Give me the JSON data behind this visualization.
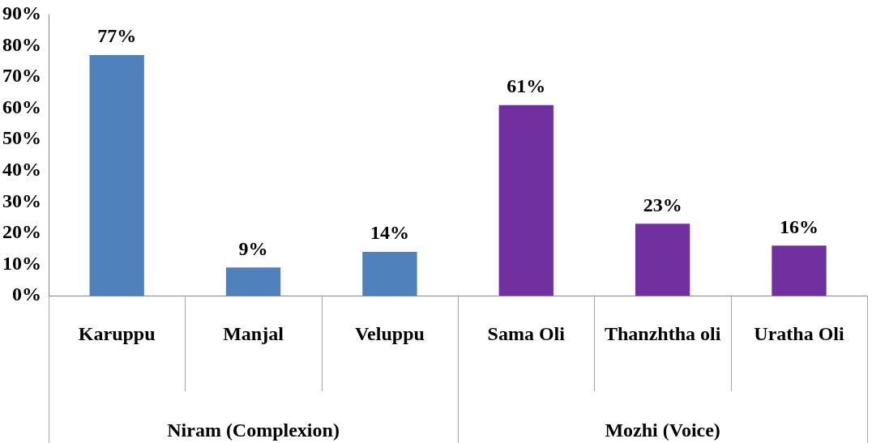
{
  "chart_data": {
    "type": "bar",
    "categories": [
      "Karuppu",
      "Manjal",
      "Veluppu",
      "Sama Oli",
      "Thanzhtha oli",
      "Uratha Oli"
    ],
    "values": [
      77,
      9,
      14,
      61,
      23,
      16
    ],
    "colors": [
      "#4f81bd",
      "#4f81bd",
      "#4f81bd",
      "#7030a0",
      "#7030a0",
      "#7030a0"
    ],
    "value_labels": [
      "77%",
      "9%",
      "14%",
      "61%",
      "23%",
      "16%"
    ],
    "ylim": [
      0,
      90
    ],
    "yticks": [
      {
        "value": 0,
        "label": "0%"
      },
      {
        "value": 10,
        "label": "10%"
      },
      {
        "value": 20,
        "label": "20%"
      },
      {
        "value": 30,
        "label": "30%"
      },
      {
        "value": 40,
        "label": "40%"
      },
      {
        "value": 50,
        "label": "50%"
      },
      {
        "value": 60,
        "label": "60%"
      },
      {
        "value": 70,
        "label": "70%"
      },
      {
        "value": 80,
        "label": "80%"
      },
      {
        "value": 90,
        "label": "90%"
      }
    ],
    "annotations": [
      "Niram (Complexion)",
      "Mozhi (Voice)"
    ],
    "grid": false,
    "legend": false
  }
}
